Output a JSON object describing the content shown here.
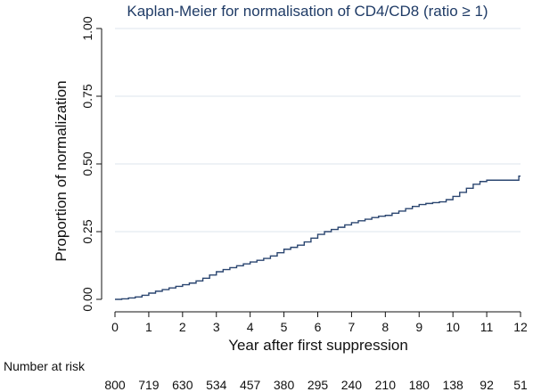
{
  "chart_data": {
    "type": "line",
    "title": "Kaplan-Meier for normalisation of CD4/CD8 (ratio ≥ 1)",
    "xlabel": "Year after first suppression",
    "ylabel": "Proportion of normalization",
    "xlim": [
      0,
      12
    ],
    "ylim": [
      0,
      1
    ],
    "x_ticks": [
      "0",
      "1",
      "2",
      "3",
      "4",
      "5",
      "6",
      "7",
      "8",
      "9",
      "10",
      "11",
      "12"
    ],
    "y_ticks": [
      "0.00",
      "0.25",
      "0.50",
      "0.75",
      "1.00"
    ],
    "grid": "horizontal",
    "colors": {
      "line": "#2b4670",
      "grid": "#dce6ee",
      "title": "#1f3b66"
    },
    "series": [
      {
        "steps": [
          [
            0,
            0.0
          ],
          [
            0.2,
            0.002
          ],
          [
            0.4,
            0.005
          ],
          [
            0.6,
            0.009
          ],
          [
            0.8,
            0.015
          ],
          [
            1.0,
            0.023
          ],
          [
            1.2,
            0.03
          ],
          [
            1.4,
            0.036
          ],
          [
            1.6,
            0.042
          ],
          [
            1.8,
            0.048
          ],
          [
            2.0,
            0.054
          ],
          [
            2.2,
            0.06
          ],
          [
            2.4,
            0.068
          ],
          [
            2.6,
            0.078
          ],
          [
            2.8,
            0.09
          ],
          [
            3.0,
            0.102
          ],
          [
            3.2,
            0.11
          ],
          [
            3.4,
            0.117
          ],
          [
            3.6,
            0.124
          ],
          [
            3.8,
            0.131
          ],
          [
            4.0,
            0.138
          ],
          [
            4.2,
            0.144
          ],
          [
            4.4,
            0.151
          ],
          [
            4.6,
            0.16
          ],
          [
            4.8,
            0.172
          ],
          [
            5.0,
            0.185
          ],
          [
            5.2,
            0.192
          ],
          [
            5.4,
            0.2
          ],
          [
            5.6,
            0.212
          ],
          [
            5.8,
            0.226
          ],
          [
            6.0,
            0.24
          ],
          [
            6.2,
            0.25
          ],
          [
            6.4,
            0.258
          ],
          [
            6.6,
            0.266
          ],
          [
            6.8,
            0.275
          ],
          [
            7.0,
            0.283
          ],
          [
            7.2,
            0.29
          ],
          [
            7.4,
            0.296
          ],
          [
            7.6,
            0.302
          ],
          [
            7.8,
            0.307
          ],
          [
            8.0,
            0.31
          ],
          [
            8.2,
            0.318
          ],
          [
            8.4,
            0.326
          ],
          [
            8.6,
            0.335
          ],
          [
            8.8,
            0.343
          ],
          [
            9.0,
            0.35
          ],
          [
            9.2,
            0.354
          ],
          [
            9.4,
            0.357
          ],
          [
            9.6,
            0.36
          ],
          [
            9.8,
            0.368
          ],
          [
            10.0,
            0.38
          ],
          [
            10.2,
            0.395
          ],
          [
            10.4,
            0.41
          ],
          [
            10.6,
            0.425
          ],
          [
            10.8,
            0.435
          ],
          [
            11.0,
            0.44
          ],
          [
            11.5,
            0.44
          ],
          [
            11.9,
            0.44
          ],
          [
            11.95,
            0.455
          ],
          [
            12.0,
            0.455
          ]
        ]
      }
    ],
    "risk_table": {
      "caption": "Number at risk",
      "x": [
        0,
        1,
        2,
        3,
        4,
        5,
        6,
        7,
        8,
        9,
        10,
        11,
        12
      ],
      "values": [
        "800",
        "719",
        "630",
        "534",
        "457",
        "380",
        "295",
        "240",
        "210",
        "180",
        "138",
        "92",
        "51"
      ]
    }
  }
}
